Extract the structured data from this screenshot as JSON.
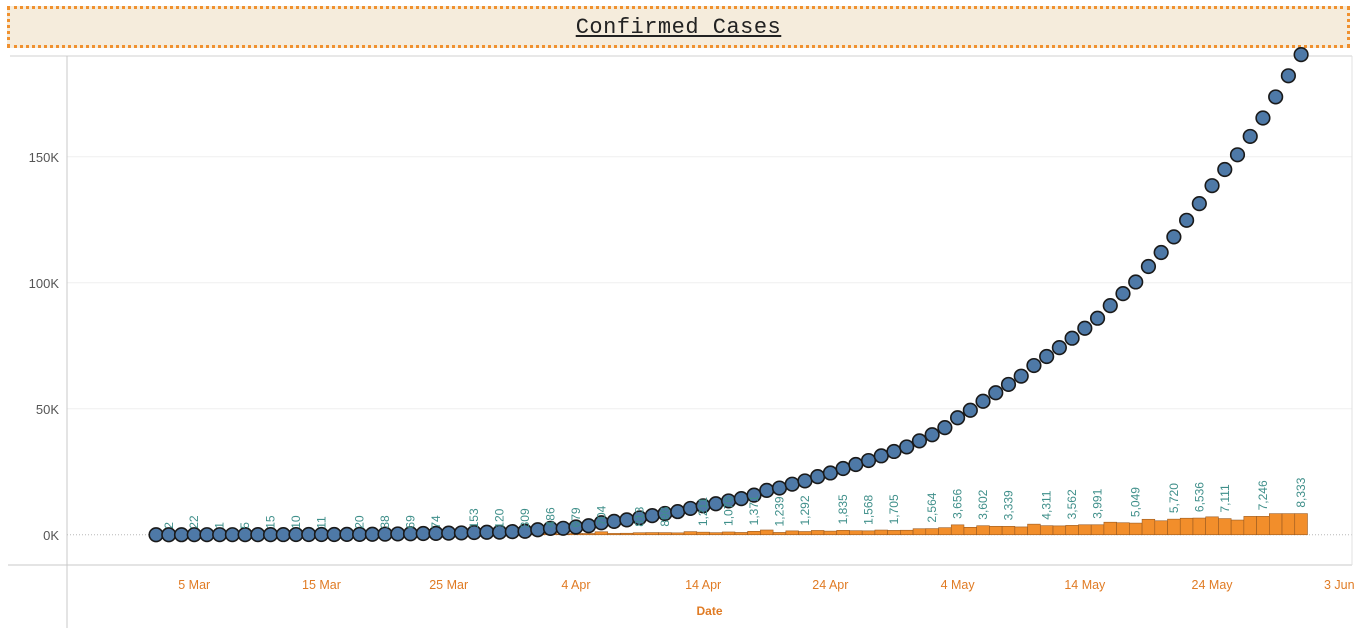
{
  "header": {
    "title": "Confirmed Cases"
  },
  "chart_data": {
    "type": "bar+scatter",
    "xlabel": "Date",
    "ylabel": "",
    "ylim": [
      -12000,
      190000
    ],
    "y_ticks": [
      {
        "value": 0,
        "label": "0K"
      },
      {
        "value": 50000,
        "label": "50K"
      },
      {
        "value": 100000,
        "label": "100K"
      },
      {
        "value": 150000,
        "label": "150K"
      }
    ],
    "x_ticks": [
      {
        "date": "2020-03-05",
        "label": "5 Mar"
      },
      {
        "date": "2020-03-15",
        "label": "15 Mar"
      },
      {
        "date": "2020-03-25",
        "label": "25 Mar"
      },
      {
        "date": "2020-04-04",
        "label": "4 Apr"
      },
      {
        "date": "2020-04-14",
        "label": "14 Apr"
      },
      {
        "date": "2020-04-24",
        "label": "24 Apr"
      },
      {
        "date": "2020-05-04",
        "label": "4 May"
      },
      {
        "date": "2020-05-14",
        "label": "14 May"
      },
      {
        "date": "2020-05-24",
        "label": "24 May"
      },
      {
        "date": "2020-06-03",
        "label": "3 Jun"
      }
    ],
    "xlim": [
      "2020-02-24",
      "2020-06-04"
    ],
    "grid": true,
    "colors": {
      "bars": "#f28e2b",
      "bar_edge": "#9a5a20",
      "points": "#4e79a7",
      "point_edge": "#1a1a1a",
      "bar_labels": "#3f8f8a",
      "x_ticks": "#e07b24"
    },
    "series": [
      {
        "type": "scatter",
        "dates": [
          "2020-03-02",
          "2020-03-03",
          "2020-03-04",
          "2020-03-05",
          "2020-03-06",
          "2020-03-07",
          "2020-03-08",
          "2020-03-09",
          "2020-03-10",
          "2020-03-11",
          "2020-03-12",
          "2020-03-13",
          "2020-03-14",
          "2020-03-15",
          "2020-03-16",
          "2020-03-17",
          "2020-03-18",
          "2020-03-19",
          "2020-03-20",
          "2020-03-21",
          "2020-03-22",
          "2020-03-23",
          "2020-03-24",
          "2020-03-25",
          "2020-03-26",
          "2020-03-27",
          "2020-03-28",
          "2020-03-29",
          "2020-03-30",
          "2020-03-31",
          "2020-04-01",
          "2020-04-02",
          "2020-04-03",
          "2020-04-04",
          "2020-04-05",
          "2020-04-06",
          "2020-04-07",
          "2020-04-08",
          "2020-04-09",
          "2020-04-10",
          "2020-04-11",
          "2020-04-12",
          "2020-04-13",
          "2020-04-14",
          "2020-04-15",
          "2020-04-16",
          "2020-04-17",
          "2020-04-18",
          "2020-04-19",
          "2020-04-20",
          "2020-04-21",
          "2020-04-22",
          "2020-04-23",
          "2020-04-24",
          "2020-04-25",
          "2020-04-26",
          "2020-04-27",
          "2020-04-28",
          "2020-04-29",
          "2020-04-30",
          "2020-05-01",
          "2020-05-02",
          "2020-05-03",
          "2020-05-04",
          "2020-05-05",
          "2020-05-06",
          "2020-05-07",
          "2020-05-08",
          "2020-05-09",
          "2020-05-10",
          "2020-05-11",
          "2020-05-12",
          "2020-05-13",
          "2020-05-14",
          "2020-05-15",
          "2020-05-16",
          "2020-05-17",
          "2020-05-18",
          "2020-05-19",
          "2020-05-20",
          "2020-05-21",
          "2020-05-22",
          "2020-05-23",
          "2020-05-24",
          "2020-05-25",
          "2020-05-26",
          "2020-05-27",
          "2020-05-28",
          "2020-05-29",
          "2020-05-30",
          "2020-05-31"
        ],
        "values": [
          5,
          6,
          28,
          30,
          31,
          34,
          39,
          43,
          56,
          62,
          73,
          82,
          102,
          113,
          119,
          142,
          156,
          194,
          244,
          330,
          396,
          499,
          536,
          657,
          727,
          887,
          987,
          1024,
          1251,
          1397,
          1998,
          2543,
          2567,
          3082,
          3588,
          4778,
          5311,
          5916,
          6725,
          7598,
          8446,
          9205,
          10453,
          11487,
          12322,
          13430,
          14352,
          15722,
          17615,
          18539,
          20080,
          21370,
          23077,
          24530,
          26283,
          27890,
          29451,
          31324,
          33062,
          34863,
          37257,
          39699,
          42505,
          46437,
          49400,
          52987,
          56351,
          59662,
          62939,
          67152,
          70756,
          74281,
          78003,
          81970,
          85940,
          90927,
          95698,
          100328,
          106475,
          112028,
          118226,
          124794,
          131423,
          138536,
          144950,
          150793,
          158086,
          165386,
          173763,
          182143,
          190535
        ]
      },
      {
        "type": "bar",
        "dates": [
          "2020-03-02",
          "2020-03-03",
          "2020-03-04",
          "2020-03-05",
          "2020-03-06",
          "2020-03-07",
          "2020-03-08",
          "2020-03-09",
          "2020-03-10",
          "2020-03-11",
          "2020-03-12",
          "2020-03-13",
          "2020-03-14",
          "2020-03-15",
          "2020-03-16",
          "2020-03-17",
          "2020-03-18",
          "2020-03-19",
          "2020-03-20",
          "2020-03-21",
          "2020-03-22",
          "2020-03-23",
          "2020-03-24",
          "2020-03-25",
          "2020-03-26",
          "2020-03-27",
          "2020-03-28",
          "2020-03-29",
          "2020-03-30",
          "2020-03-31",
          "2020-04-01",
          "2020-04-02",
          "2020-04-03",
          "2020-04-04",
          "2020-04-05",
          "2020-04-06",
          "2020-04-07",
          "2020-04-08",
          "2020-04-09",
          "2020-04-10",
          "2020-04-11",
          "2020-04-12",
          "2020-04-13",
          "2020-04-14",
          "2020-04-15",
          "2020-04-16",
          "2020-04-17",
          "2020-04-18",
          "2020-04-19",
          "2020-04-20",
          "2020-04-21",
          "2020-04-22",
          "2020-04-23",
          "2020-04-24",
          "2020-04-25",
          "2020-04-26",
          "2020-04-27",
          "2020-04-28",
          "2020-04-29",
          "2020-04-30",
          "2020-05-01",
          "2020-05-02",
          "2020-05-03",
          "2020-05-04",
          "2020-05-05",
          "2020-05-06",
          "2020-05-07",
          "2020-05-08",
          "2020-05-09",
          "2020-05-10",
          "2020-05-11",
          "2020-05-12",
          "2020-05-13",
          "2020-05-14",
          "2020-05-15",
          "2020-05-16",
          "2020-05-17",
          "2020-05-18",
          "2020-05-19",
          "2020-05-20",
          "2020-05-21",
          "2020-05-22",
          "2020-05-23",
          "2020-05-24",
          "2020-05-25",
          "2020-05-26",
          "2020-05-27",
          "2020-05-28",
          "2020-05-29",
          "2020-05-30",
          "2020-05-31"
        ],
        "values": [
          2,
          1,
          22,
          2,
          1,
          3,
          5,
          4,
          13,
          6,
          11,
          9,
          20,
          11,
          6,
          23,
          14,
          38,
          50,
          86,
          66,
          103,
          37,
          121,
          70,
          160,
          100,
          37,
          227,
          146,
          601,
          545,
          24,
          515,
          506,
          1190,
          533,
          605,
          809,
          873,
          848,
          759,
          1248,
          1034,
          835,
          1108,
          922,
          1370,
          1893,
          924,
          1541,
          1290,
          1707,
          1453,
          1753,
          1607,
          1561,
          1873,
          1738,
          1801,
          2394,
          2442,
          2806,
          3932,
          2963,
          3587,
          3364,
          3344,
          3113,
          4213,
          3604,
          3525,
          3722,
          3967,
          3970,
          4987,
          4771,
          4630,
          6147,
          5553,
          6198,
          6568,
          6629,
          7113,
          6414,
          5843,
          7293,
          7300,
          8377,
          8380,
          8392
        ],
        "labels": [
          {
            "date": "2020-03-03",
            "text": "2"
          },
          {
            "date": "2020-03-05",
            "text": "22"
          },
          {
            "date": "2020-03-07",
            "text": "1"
          },
          {
            "date": "2020-03-09",
            "text": "5"
          },
          {
            "date": "2020-03-11",
            "text": "15"
          },
          {
            "date": "2020-03-13",
            "text": "10"
          },
          {
            "date": "2020-03-15",
            "text": "11"
          },
          {
            "date": "2020-03-18",
            "text": "20"
          },
          {
            "date": "2020-03-20",
            "text": "38"
          },
          {
            "date": "2020-03-22",
            "text": "69"
          },
          {
            "date": "2020-03-24",
            "text": "74"
          },
          {
            "date": "2020-03-27",
            "text": "153"
          },
          {
            "date": "2020-03-29",
            "text": "120"
          },
          {
            "date": "2020-03-31",
            "text": "309"
          },
          {
            "date": "2020-04-02",
            "text": "486"
          },
          {
            "date": "2020-04-04",
            "text": "679"
          },
          {
            "date": "2020-04-06",
            "text": "704"
          },
          {
            "date": "2020-04-09",
            "text": "813"
          },
          {
            "date": "2020-04-11",
            "text": "896"
          },
          {
            "date": "2020-04-14",
            "text": "1,211"
          },
          {
            "date": "2020-04-16",
            "text": "1,076"
          },
          {
            "date": "2020-04-18",
            "text": "1,371"
          },
          {
            "date": "2020-04-20",
            "text": "1,239"
          },
          {
            "date": "2020-04-22",
            "text": "1,292"
          },
          {
            "date": "2020-04-25",
            "text": "1,835"
          },
          {
            "date": "2020-04-27",
            "text": "1,568"
          },
          {
            "date": "2020-04-29",
            "text": "1,705"
          },
          {
            "date": "2020-05-02",
            "text": "2,564"
          },
          {
            "date": "2020-05-04",
            "text": "3,656"
          },
          {
            "date": "2020-05-06",
            "text": "3,602"
          },
          {
            "date": "2020-05-08",
            "text": "3,339"
          },
          {
            "date": "2020-05-11",
            "text": "4,311"
          },
          {
            "date": "2020-05-13",
            "text": "3,562"
          },
          {
            "date": "2020-05-15",
            "text": "3,991"
          },
          {
            "date": "2020-05-18",
            "text": "5,049"
          },
          {
            "date": "2020-05-21",
            "text": "5,720"
          },
          {
            "date": "2020-05-23",
            "text": "6,536"
          },
          {
            "date": "2020-05-25",
            "text": "7,111"
          },
          {
            "date": "2020-05-28",
            "text": "7,246"
          },
          {
            "date": "2020-05-31",
            "text": "8,333"
          }
        ]
      }
    ]
  }
}
